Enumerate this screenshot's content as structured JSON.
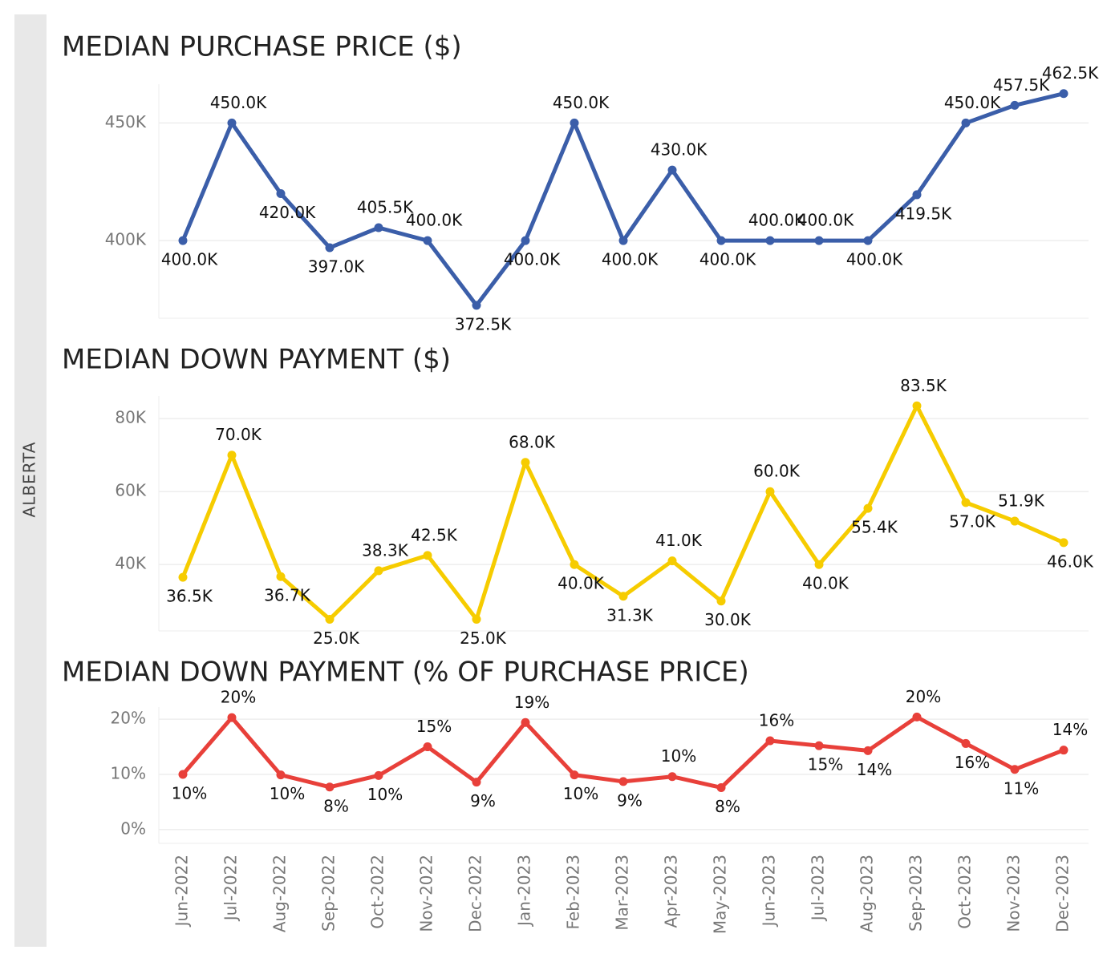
{
  "side_label": "ALBERTA",
  "chart_data": [
    {
      "type": "line",
      "title": "MEDIAN PURCHASE PRICE ($)",
      "color": "#3b5ea9",
      "values": [
        400000,
        450000,
        420000,
        397000,
        405500,
        400000,
        372500,
        400000,
        450000,
        400000,
        430000,
        400000,
        400000,
        400000,
        400000,
        419500,
        450000,
        457500,
        462500
      ],
      "value_labels": [
        "400.0K",
        "450.0K",
        "420.0K",
        "397.0K",
        "405.5K",
        "400.0K",
        "372.5K",
        "400.0K",
        "450.0K",
        "400.0K",
        "430.0K",
        "400.0K",
        "400.0K",
        "400.0K",
        "400.0K",
        "419.5K",
        "450.0K",
        "457.5K",
        "462.5K"
      ],
      "ylim": [
        367000,
        466500
      ],
      "yticks": [
        {
          "value": 400000,
          "label": "400K"
        },
        {
          "value": 450000,
          "label": "450K"
        }
      ],
      "grid": true
    },
    {
      "type": "line",
      "title": "MEDIAN DOWN PAYMENT ($)",
      "color": "#f6cc00",
      "values": [
        36500,
        70000,
        36700,
        25000,
        38300,
        42500,
        25000,
        68000,
        40000,
        31300,
        41000,
        30000,
        60000,
        40000,
        55400,
        83500,
        57000,
        51900,
        46000
      ],
      "value_labels": [
        "36.5K",
        "70.0K",
        "36.7K",
        "25.0K",
        "38.3K",
        "42.5K",
        "25.0K",
        "68.0K",
        "40.0K",
        "31.3K",
        "41.0K",
        "30.0K",
        "60.0K",
        "40.0K",
        "55.4K",
        "83.5K",
        "57.0K",
        "51.9K",
        "46.0K"
      ],
      "ylim": [
        21800,
        86200
      ],
      "yticks": [
        {
          "value": 40000,
          "label": "40K"
        },
        {
          "value": 60000,
          "label": "60K"
        },
        {
          "value": 80000,
          "label": "80K"
        }
      ],
      "grid": true
    },
    {
      "type": "line",
      "title": "MEDIAN DOWN PAYMENT (% OF PURCHASE PRICE)",
      "color": "#e8403a",
      "categories": [
        "Jun-2022",
        "Jul-2022",
        "Aug-2022",
        "Sep-2022",
        "Oct-2022",
        "Nov-2022",
        "Dec-2022",
        "Jan-2023",
        "Feb-2023",
        "Mar-2023",
        "Apr-2023",
        "May-2023",
        "Jun-2023",
        "Jul-2023",
        "Aug-2023",
        "Sep-2023",
        "Oct-2023",
        "Nov-2023",
        "Dec-2023"
      ],
      "values": [
        10,
        20.3,
        9.9,
        7.7,
        9.8,
        15,
        8.6,
        19.4,
        9.9,
        8.7,
        9.6,
        7.6,
        16.1,
        15.2,
        14.3,
        20.4,
        15.6,
        10.9,
        14.4
      ],
      "value_labels": [
        "10%",
        "20%",
        "10%",
        "8%",
        "10%",
        "15%",
        "9%",
        "19%",
        "10%",
        "9%",
        "10%",
        "8%",
        "16%",
        "15%",
        "14%",
        "20%",
        "16%",
        "11%",
        "14%"
      ],
      "ylim": [
        -2.5,
        22.2
      ],
      "yticks": [
        {
          "value": 0,
          "label": "0%"
        },
        {
          "value": 10,
          "label": "10%"
        },
        {
          "value": 20,
          "label": "20%"
        }
      ],
      "grid": true
    }
  ]
}
